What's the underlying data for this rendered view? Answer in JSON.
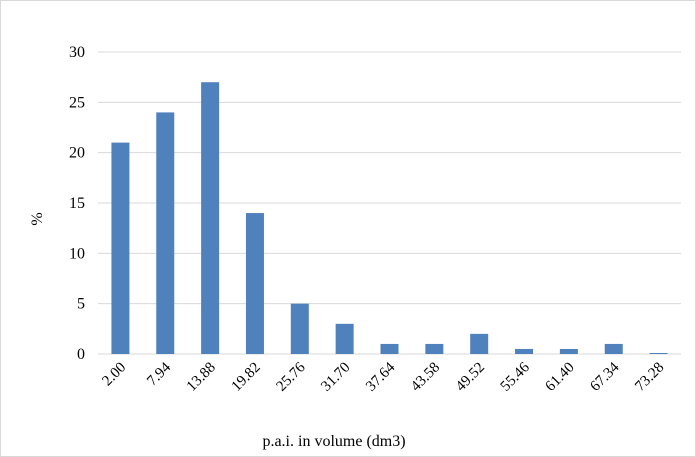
{
  "chart_data": {
    "type": "bar",
    "title": "",
    "xlabel": "p.a.i. in volume (dm3)",
    "ylabel": "%",
    "ylim": [
      0,
      30
    ],
    "yticks": [
      0,
      5,
      10,
      15,
      20,
      25,
      30
    ],
    "grid": true,
    "categories": [
      "2.00",
      "7.94",
      "13.88",
      "19.82",
      "25.76",
      "31.70",
      "37.64",
      "43.58",
      "49.52",
      "55.46",
      "61.40",
      "67.34",
      "73.28"
    ],
    "values": [
      21,
      24,
      27,
      14,
      5,
      3,
      1,
      1,
      2,
      0.5,
      0.5,
      1,
      0.1
    ],
    "bar_color": "#4f81bd",
    "grid_color": "#d9d9d9"
  }
}
